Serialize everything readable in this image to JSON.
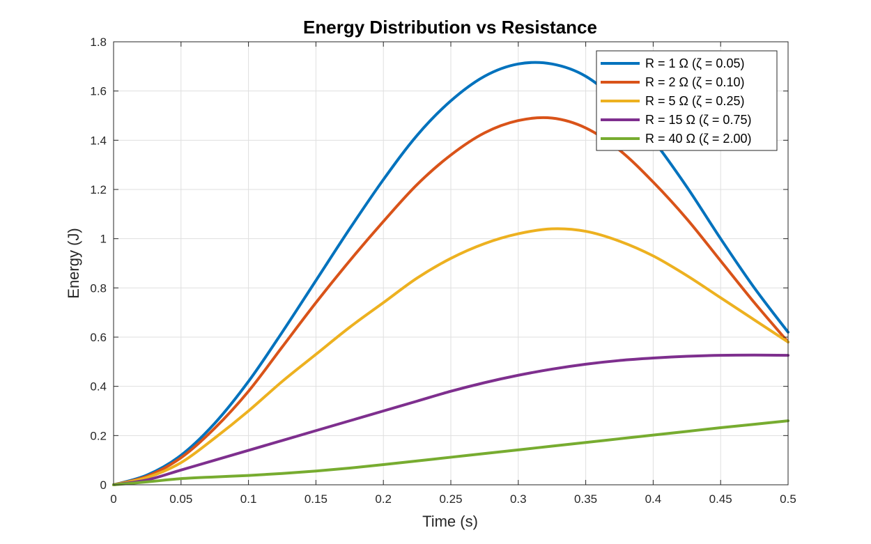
{
  "chart_data": {
    "type": "line",
    "title": "Energy Distribution vs Resistance",
    "xlabel": "Time (s)",
    "ylabel": "Energy (J)",
    "xlim": [
      0,
      0.5
    ],
    "ylim": [
      0,
      1.8
    ],
    "xticks": [
      0,
      0.05,
      0.1,
      0.15,
      0.2,
      0.25,
      0.3,
      0.35,
      0.4,
      0.45,
      0.5
    ],
    "xtick_labels": [
      "0",
      "0.05",
      "0.1",
      "0.15",
      "0.2",
      "0.25",
      "0.3",
      "0.35",
      "0.4",
      "0.45",
      "0.5"
    ],
    "yticks": [
      0,
      0.2,
      0.4,
      0.6,
      0.8,
      1,
      1.2,
      1.4,
      1.6,
      1.8
    ],
    "ytick_labels": [
      "0",
      "0.2",
      "0.4",
      "0.6",
      "0.8",
      "1",
      "1.2",
      "1.4",
      "1.6",
      "1.8"
    ],
    "grid": true,
    "legend_position": "top-right",
    "x": [
      0,
      0.025,
      0.05,
      0.075,
      0.1,
      0.125,
      0.15,
      0.175,
      0.2,
      0.225,
      0.25,
      0.275,
      0.3,
      0.325,
      0.35,
      0.375,
      0.4,
      0.425,
      0.45,
      0.475,
      0.5
    ],
    "series": [
      {
        "name": "R = 1 Ω (ζ = 0.05)",
        "color": "#0072BD",
        "values": [
          0,
          0.04,
          0.12,
          0.25,
          0.42,
          0.62,
          0.83,
          1.04,
          1.24,
          1.42,
          1.56,
          1.66,
          1.71,
          1.71,
          1.66,
          1.55,
          1.4,
          1.21,
          1.0,
          0.8,
          0.62
        ]
      },
      {
        "name": "R = 2 Ω (ζ = 0.10)",
        "color": "#D95319",
        "values": [
          0,
          0.035,
          0.11,
          0.23,
          0.38,
          0.56,
          0.74,
          0.91,
          1.07,
          1.22,
          1.34,
          1.43,
          1.48,
          1.49,
          1.45,
          1.36,
          1.23,
          1.08,
          0.91,
          0.74,
          0.58
        ]
      },
      {
        "name": "R = 5 Ω (ζ = 0.25)",
        "color": "#EDB120",
        "values": [
          0,
          0.03,
          0.09,
          0.19,
          0.3,
          0.42,
          0.53,
          0.64,
          0.74,
          0.84,
          0.92,
          0.98,
          1.02,
          1.04,
          1.03,
          0.99,
          0.93,
          0.85,
          0.76,
          0.67,
          0.58
        ]
      },
      {
        "name": "R = 15 Ω (ζ = 0.75)",
        "color": "#7E2F8E",
        "values": [
          0,
          0.02,
          0.06,
          0.1,
          0.14,
          0.18,
          0.22,
          0.26,
          0.3,
          0.34,
          0.38,
          0.415,
          0.445,
          0.47,
          0.49,
          0.505,
          0.515,
          0.522,
          0.526,
          0.527,
          0.526
        ]
      },
      {
        "name": "R = 40 Ω (ζ = 2.00)",
        "color": "#77AC30",
        "values": [
          0,
          0.012,
          0.025,
          0.032,
          0.038,
          0.046,
          0.056,
          0.068,
          0.082,
          0.097,
          0.112,
          0.127,
          0.142,
          0.157,
          0.172,
          0.187,
          0.202,
          0.217,
          0.232,
          0.246,
          0.26
        ]
      }
    ]
  }
}
